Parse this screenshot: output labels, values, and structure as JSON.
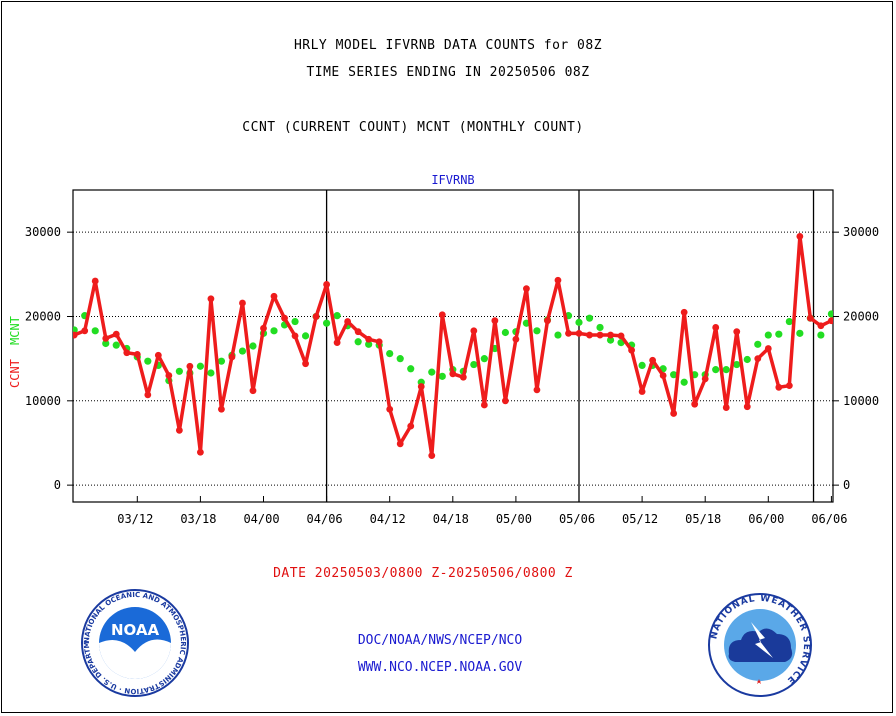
{
  "titles": {
    "line1": "HRLY MODEL IFVRNB DATA COUNTS for 08Z",
    "line2": "TIME SERIES ENDING IN 20250506 08Z",
    "line3": "CCNT (CURRENT COUNT) MCNT (MONTHLY COUNT)"
  },
  "footer": {
    "date_range": "DATE 20250503/0800 Z-20250506/0800 Z",
    "org_path": "DOC/NOAA/NWS/NCEP/NCO",
    "website": "WWW.NCO.NCEP.NOAA.GOV"
  },
  "logos": {
    "noaa_text": "NOAA",
    "noaa_ring_text": "NATIONAL OCEANIC AND ATMOSPHERIC ADMINISTRATION · U.S. DEPARTMENT OF COMMERCE ·",
    "nws_ring_text": "NATIONAL WEATHER SERVICE"
  },
  "colors": {
    "ccnt": "#ee1c1c",
    "mcnt": "#22dd22",
    "plot_label": "#1a1ad0",
    "grid": "#000000"
  },
  "chart_data": {
    "type": "line",
    "plot_label": "IFVRNB",
    "ylabel_left": [
      "CCNT",
      "MCNT"
    ],
    "ylim": [
      -2000,
      35000
    ],
    "yticks": [
      0,
      10000,
      20000,
      30000
    ],
    "ytick_labels": [
      "0",
      "10000",
      "20000",
      "30000"
    ],
    "xticks": [
      "03/12",
      "03/18",
      "04/00",
      "04/06",
      "04/12",
      "04/18",
      "05/00",
      "05/06",
      "05/12",
      "05/18",
      "06/00",
      "06/06"
    ],
    "grid": "horizontal dotted",
    "month_dividers_at_tick": [
      "04/06",
      "05/06"
    ],
    "end_divider_after_last_point": true,
    "points_per_tick": 6,
    "series": [
      {
        "name": "CCNT",
        "values": [
          17800,
          18300,
          24200,
          17400,
          17900,
          15700,
          15500,
          10700,
          15400,
          13000,
          6500,
          14100,
          3900,
          22100,
          9000,
          15200,
          21600,
          11200,
          18600,
          22400,
          19800,
          17700,
          14400,
          20000,
          23800,
          16900,
          19400,
          18200,
          17300,
          17000,
          9000,
          4900,
          7000,
          11700,
          3500,
          20200,
          13200,
          12800,
          18300,
          9500,
          19500,
          10000,
          17300,
          23300,
          11300,
          19500,
          24300,
          18000,
          18000,
          17800,
          17800,
          17800,
          17700,
          16000,
          11100,
          14800,
          13000,
          8500,
          20500,
          9600,
          12600,
          18700,
          9200,
          18200,
          9300,
          15000,
          16200,
          11600,
          11800,
          29500,
          19800,
          18900,
          19500,
          18700
        ]
      },
      {
        "name": "MCNT",
        "values": [
          18400,
          20100,
          18300,
          16800,
          16600,
          16200,
          15200,
          14700,
          14200,
          12400,
          13500,
          13300,
          14100,
          13300,
          14700,
          15400,
          15900,
          16500,
          18000,
          18300,
          19000,
          19400,
          17700,
          20000,
          19200,
          20100,
          18900,
          17000,
          16700,
          16600,
          15600,
          15000,
          13800,
          12200,
          13400,
          12900,
          13700,
          13500,
          14300,
          15000,
          16200,
          18100,
          18200,
          19200,
          18300,
          19600,
          17800,
          20100,
          19300,
          19800,
          18700,
          17200,
          16900,
          16600,
          14200,
          14200,
          13800,
          13100,
          12200,
          13100,
          13100,
          13700,
          13700,
          14300,
          14900,
          16700,
          17800,
          17900,
          19400,
          18000,
          19800,
          17800,
          20300,
          19300
        ]
      }
    ]
  }
}
